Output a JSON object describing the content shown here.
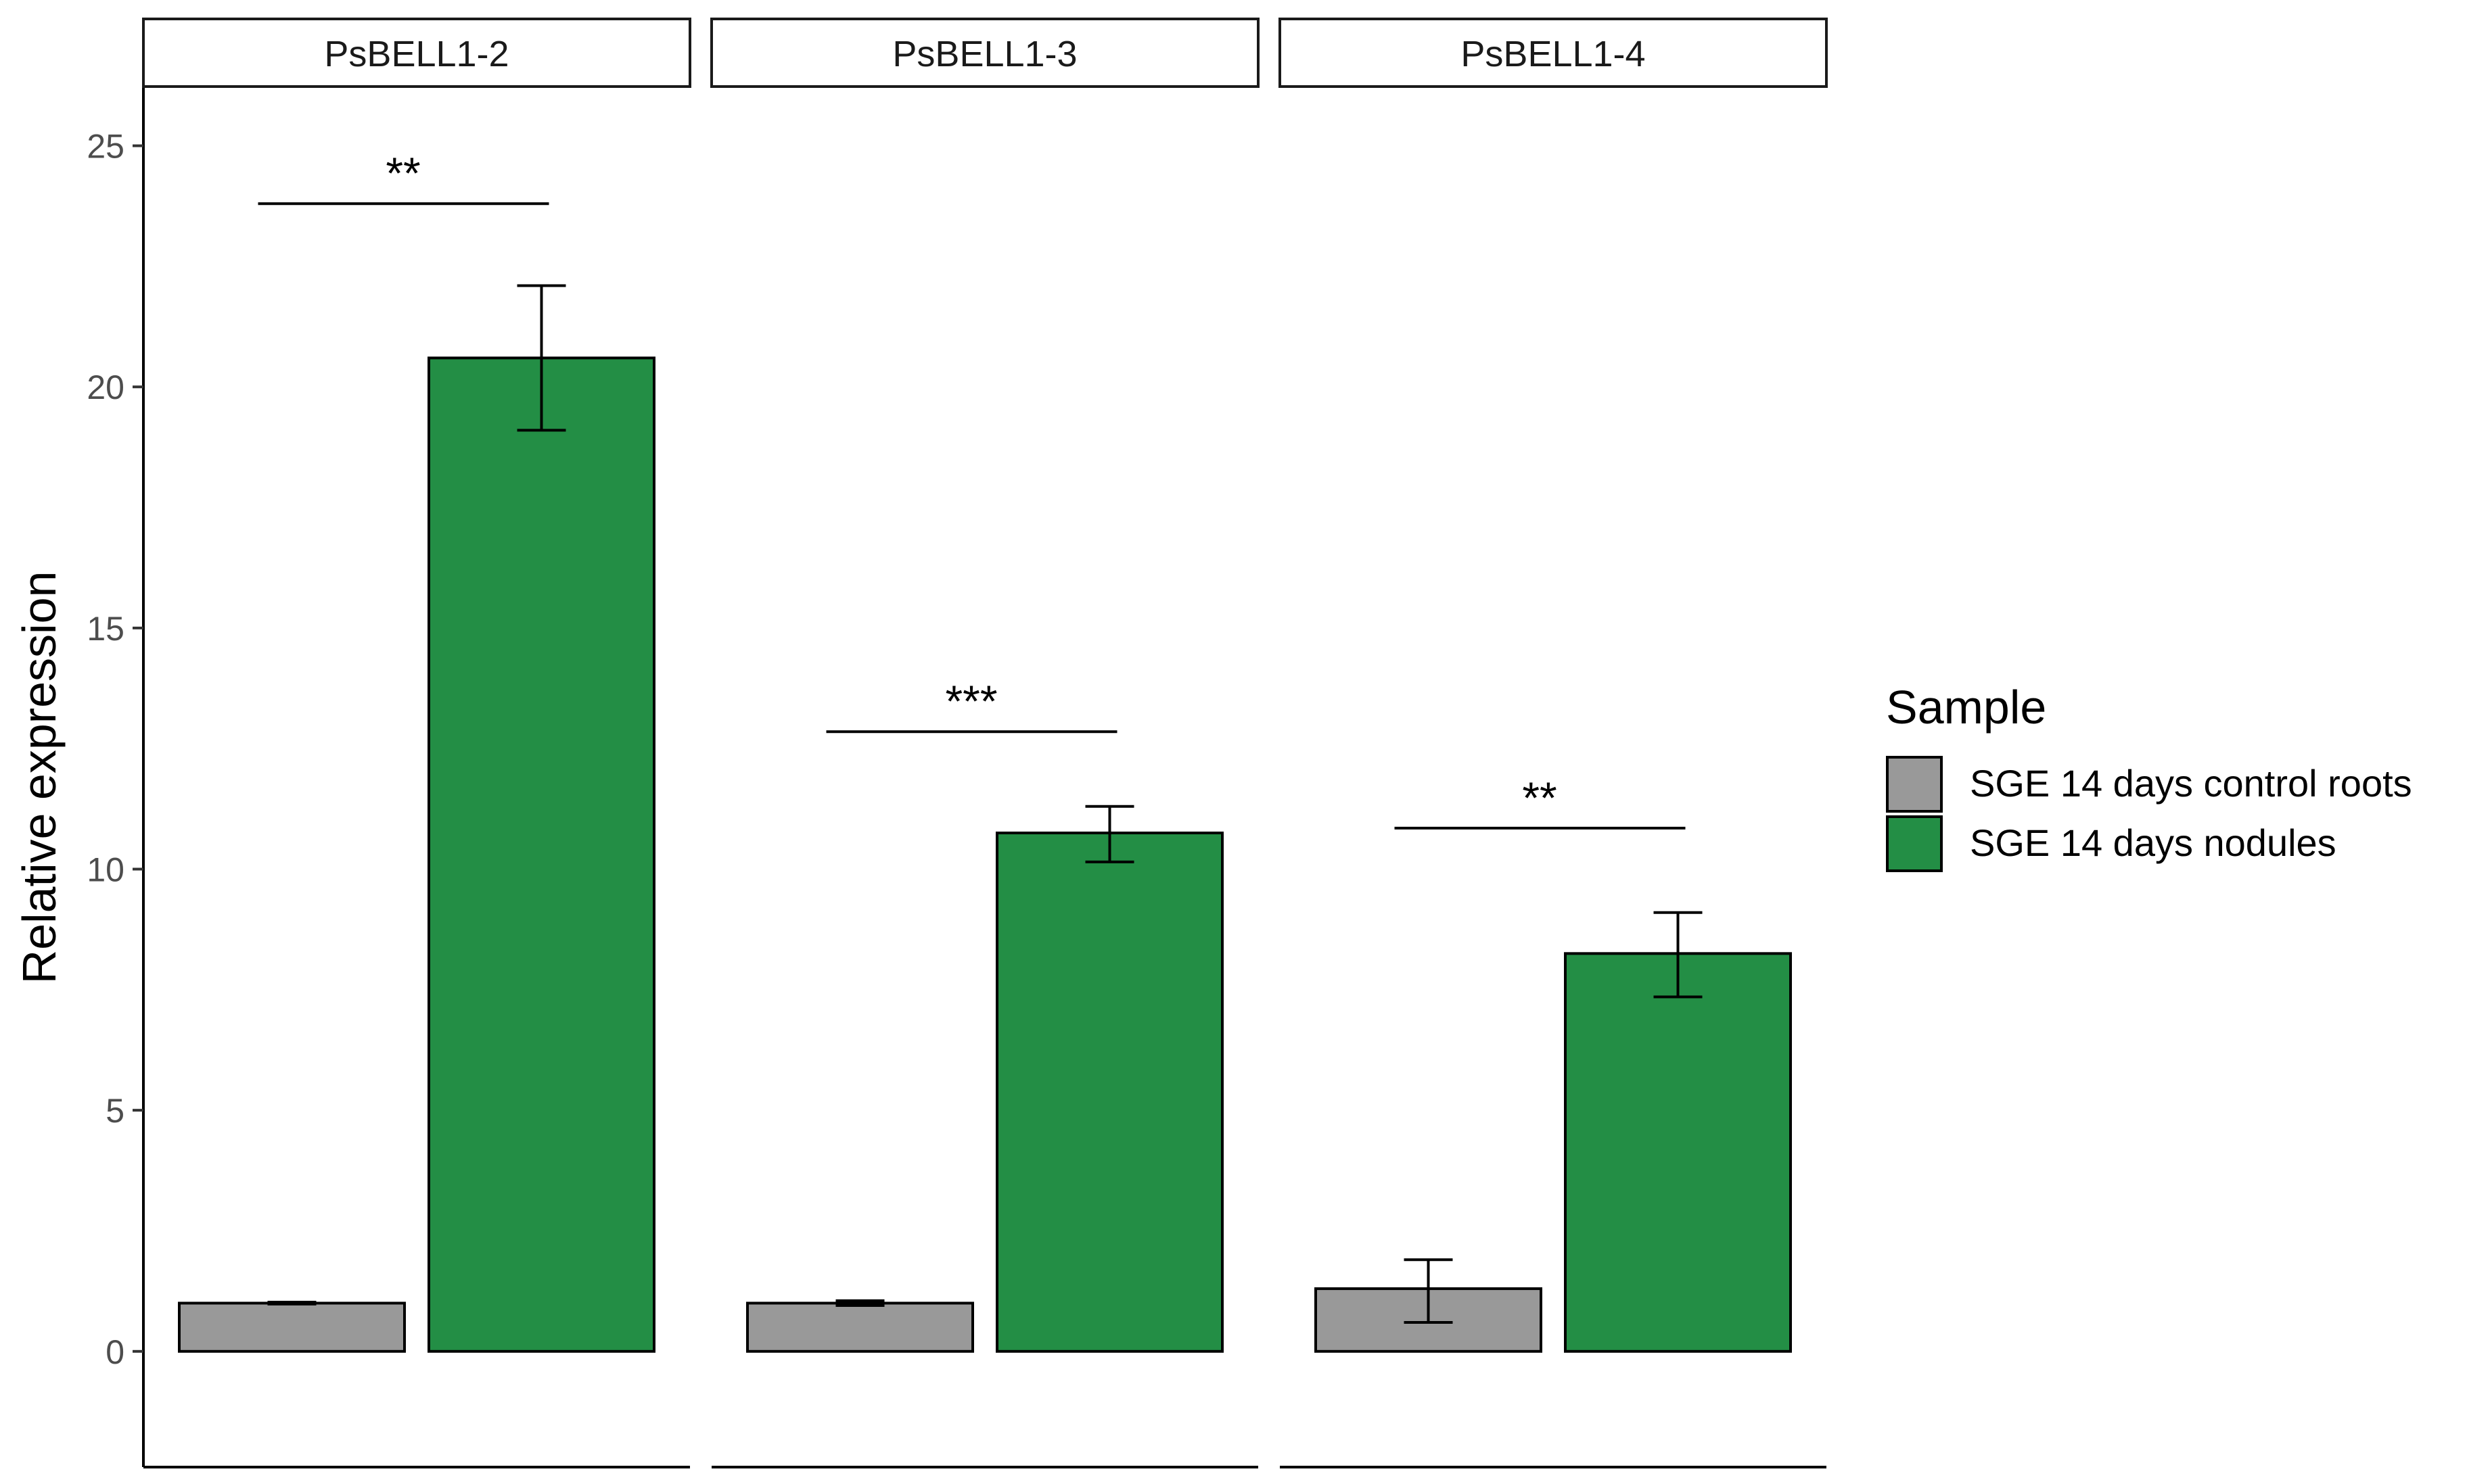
{
  "chart_data": {
    "type": "bar",
    "facet_labels": [
      "PsBELL1-2",
      "PsBELL1-3",
      "PsBELL1-4"
    ],
    "ylabel": "Relative expression",
    "ylim": [
      -2.4,
      26.2
    ],
    "yticks": [
      0,
      5,
      10,
      15,
      20,
      25
    ],
    "legend": {
      "title": "Sample",
      "position": "right",
      "entries": [
        {
          "name": "SGE 14 days control roots",
          "color": "#999999"
        },
        {
          "name": "SGE 14 days nodules",
          "color": "#238e45"
        }
      ]
    },
    "panels": [
      {
        "label": "PsBELL1-2",
        "bars": [
          {
            "series": "SGE 14 days control roots",
            "value": 1.0,
            "err_low": 0.98,
            "err_high": 1.02
          },
          {
            "series": "SGE 14 days nodules",
            "value": 20.6,
            "err_low": 19.1,
            "err_high": 22.1
          }
        ],
        "significance": {
          "label": "**",
          "y": 23.8
        }
      },
      {
        "label": "PsBELL1-3",
        "bars": [
          {
            "series": "SGE 14 days control roots",
            "value": 1.0,
            "err_low": 0.95,
            "err_high": 1.05
          },
          {
            "series": "SGE 14 days nodules",
            "value": 10.75,
            "err_low": 10.15,
            "err_high": 11.3
          }
        ],
        "significance": {
          "label": "***",
          "y": 12.85
        }
      },
      {
        "label": "PsBELL1-4",
        "bars": [
          {
            "series": "SGE 14 days control roots",
            "value": 1.3,
            "err_low": 0.6,
            "err_high": 1.9
          },
          {
            "series": "SGE 14 days nodules",
            "value": 8.25,
            "err_low": 7.35,
            "err_high": 9.1
          }
        ],
        "significance": {
          "label": "**",
          "y": 10.85
        }
      }
    ],
    "grid": false
  }
}
